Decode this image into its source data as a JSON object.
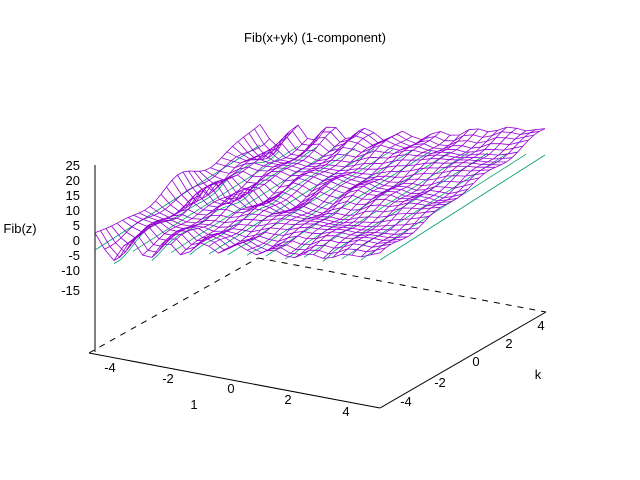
{
  "chart_data": {
    "type": "surface",
    "title": "Fib(x+yk) (1-component)",
    "zlabel": "Fib(z)",
    "ylabel": "k",
    "xlabel": "",
    "z_ticks": [
      "25",
      "20",
      "15",
      "10",
      "5",
      "0",
      "-5",
      "-10",
      "-15"
    ],
    "x_ticks": [
      "-4",
      "-2",
      "0",
      "2",
      "4"
    ],
    "y_ticks": [
      "-4",
      "-2",
      "0",
      "2",
      "4"
    ],
    "axis_ranges": {
      "x": [
        -5,
        5
      ],
      "y": [
        -5,
        5
      ],
      "z": [
        -15,
        25
      ]
    },
    "grid": false,
    "style": "wireframe mesh",
    "colors": {
      "surface_top": "#9400d3",
      "surface_bottom": "#009e73",
      "axes": "#000000"
    }
  },
  "stray_annotation": "1"
}
